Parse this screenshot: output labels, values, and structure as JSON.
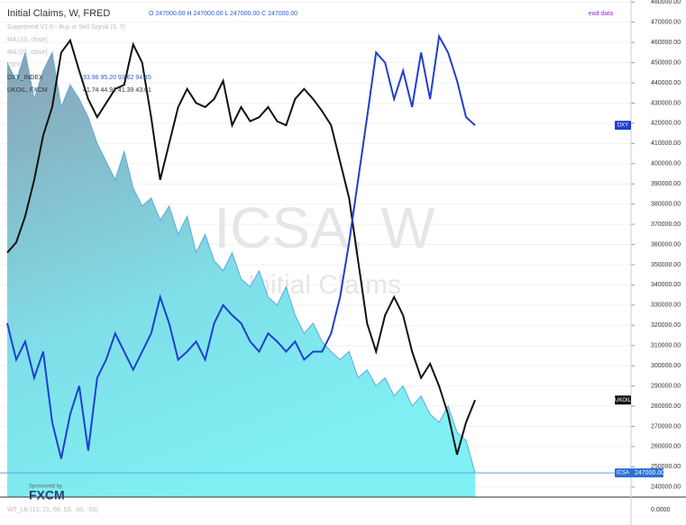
{
  "chart_data": {
    "type": "line",
    "title": "Initial Claims, W, FRED",
    "ohlc": "O 247000.00 H 247000.00 L 247000.00 C 247000.00",
    "indicators": [
      "Supertrend V1.0 - Buy or Sell Signal (3, 7)",
      "MA (10, close)",
      "MA (20, close)",
      "DXY"
    ],
    "overlays": [
      {
        "name": "DXY_INDEX",
        "ohlc": "93.98 95.20 93.62 94.45"
      },
      {
        "name": "UKOIL, FXCM",
        "ohlc": "41.74 44.91 41.39 43.01"
      }
    ],
    "watermark": "ICSA, W",
    "watermark_subtitle": "Initial Claims",
    "source": "eod data",
    "sponsor": "Sponsored by",
    "sponsor_name": "FXCM",
    "lower_pane": {
      "title": "WT_LB (10, 21, 60, 53, -60, -53)",
      "value_label": "0.0000"
    },
    "ylim": [
      235000,
      481000
    ],
    "yticks": [
      {
        "value": 240000,
        "label": "240000.00"
      },
      {
        "value": 250000,
        "label": "250000.00"
      },
      {
        "value": 260000,
        "label": "260000.00"
      },
      {
        "value": 270000,
        "label": "270000.00"
      },
      {
        "value": 280000,
        "label": "280000.00"
      },
      {
        "value": 290000,
        "label": "290000.00"
      },
      {
        "value": 300000,
        "label": "300000.00"
      },
      {
        "value": 310000,
        "label": "310000.00"
      },
      {
        "value": 320000,
        "label": "320000.00"
      },
      {
        "value": 330000,
        "label": "330000.00"
      },
      {
        "value": 340000,
        "label": "340000.00"
      },
      {
        "value": 350000,
        "label": "350000.00"
      },
      {
        "value": 360000,
        "label": "360000.00"
      },
      {
        "value": 370000,
        "label": "370000.00"
      },
      {
        "value": 380000,
        "label": "380000.00"
      },
      {
        "value": 390000,
        "label": "390000.00"
      },
      {
        "value": 400000,
        "label": "400000.00"
      },
      {
        "value": 410000,
        "label": "410000.00"
      },
      {
        "value": 420000,
        "label": "420000.00"
      },
      {
        "value": 430000,
        "label": "430000.00"
      },
      {
        "value": 440000,
        "label": "440000.00"
      },
      {
        "value": 450000,
        "label": "450000.00"
      },
      {
        "value": 460000,
        "label": "460000.00"
      },
      {
        "value": 470000,
        "label": "470000.00"
      },
      {
        "value": 480000,
        "label": "480000.00"
      }
    ],
    "series": [
      {
        "name": "ICSA",
        "style": "area",
        "color": "#5aa9e0",
        "last_label": "247000.00",
        "values": [
          450000,
          441000,
          455000,
          432000,
          446000,
          455000,
          428000,
          439000,
          432000,
          423000,
          410000,
          401000,
          392000,
          406000,
          388000,
          379000,
          383000,
          372000,
          379000,
          365000,
          374000,
          356000,
          365000,
          352000,
          347000,
          356000,
          343000,
          339000,
          347000,
          334000,
          330000,
          339000,
          325000,
          316000,
          321000,
          312000,
          307000,
          303000,
          307000,
          294000,
          298000,
          290000,
          294000,
          285000,
          290000,
          280000,
          285000,
          276000,
          272000,
          280000,
          267000,
          263000,
          247000
        ]
      },
      {
        "name": "UKOIL",
        "style": "line",
        "color": "#111111",
        "values": [
          356000,
          361000,
          374000,
          392000,
          414000,
          428000,
          455000,
          461000,
          446000,
          432000,
          423000,
          430000,
          437000,
          439000,
          459000,
          450000,
          423000,
          392000,
          410000,
          428000,
          437000,
          430000,
          428000,
          432000,
          441000,
          419000,
          428000,
          421000,
          423000,
          428000,
          421000,
          419000,
          432000,
          437000,
          432000,
          426000,
          419000,
          401000,
          383000,
          352000,
          321000,
          307000,
          325000,
          334000,
          325000,
          307000,
          294000,
          301000,
          290000,
          276000,
          256000,
          272000,
          283000
        ]
      },
      {
        "name": "DXY",
        "style": "line",
        "color": "#1f3fd0",
        "values": [
          321000,
          303000,
          312000,
          294000,
          307000,
          272000,
          254000,
          276000,
          290000,
          258000,
          294000,
          303000,
          316000,
          307000,
          298000,
          307000,
          316000,
          334000,
          321000,
          303000,
          307000,
          312000,
          303000,
          321000,
          330000,
          325000,
          321000,
          312000,
          307000,
          316000,
          312000,
          307000,
          312000,
          303000,
          307000,
          307000,
          316000,
          334000,
          361000,
          392000,
          423000,
          455000,
          450000,
          432000,
          446000,
          428000,
          455000,
          432000,
          463000,
          455000,
          441000,
          423000,
          419000
        ]
      }
    ]
  }
}
